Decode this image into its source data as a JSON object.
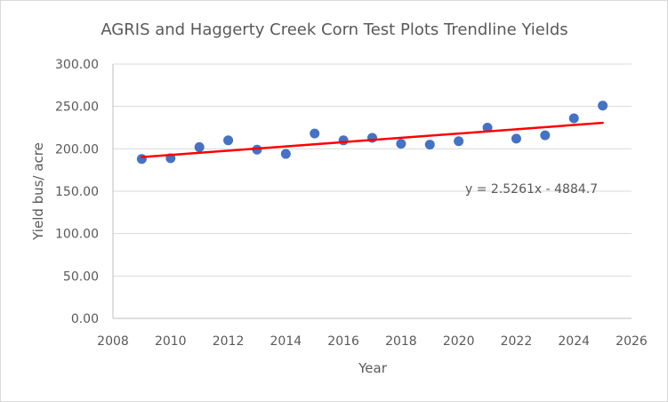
{
  "chart_data": {
    "type": "scatter",
    "title": "AGRIS and Haggerty Creek Corn  Test Plots Trendline Yields",
    "xlabel": "Year",
    "ylabel": "Yield bus/ acre",
    "xlim": [
      2008,
      2026
    ],
    "ylim": [
      0,
      300
    ],
    "x_ticks": [
      "2008",
      "2010",
      "2012",
      "2014",
      "2016",
      "2018",
      "2020",
      "2022",
      "2024",
      "2026"
    ],
    "x_tick_values": [
      2008,
      2010,
      2012,
      2014,
      2016,
      2018,
      2020,
      2022,
      2024,
      2026
    ],
    "y_ticks": [
      "0.00",
      "50.00",
      "100.00",
      "150.00",
      "200.00",
      "250.00",
      "300.00"
    ],
    "y_tick_values": [
      0,
      50,
      100,
      150,
      200,
      250,
      300
    ],
    "grid": "horizontal",
    "legend": "none",
    "series": [
      {
        "x": [
          2009,
          2010,
          2011,
          2012,
          2013,
          2014,
          2015,
          2016,
          2017,
          2018,
          2019,
          2020,
          2021,
          2022,
          2023,
          2024,
          2025
        ],
        "y": [
          188,
          189,
          202,
          210,
          199,
          194,
          218,
          210,
          213,
          206,
          205,
          209,
          225,
          212,
          216,
          236,
          251
        ],
        "color": "#4472c4"
      }
    ],
    "trendline": {
      "type": "linear",
      "slope": 2.5261,
      "intercept": -4884.7,
      "x_range": [
        2009,
        2025
      ],
      "color": "#ff0000",
      "equation_label": "y = 2.5261x - 4884.7"
    }
  }
}
